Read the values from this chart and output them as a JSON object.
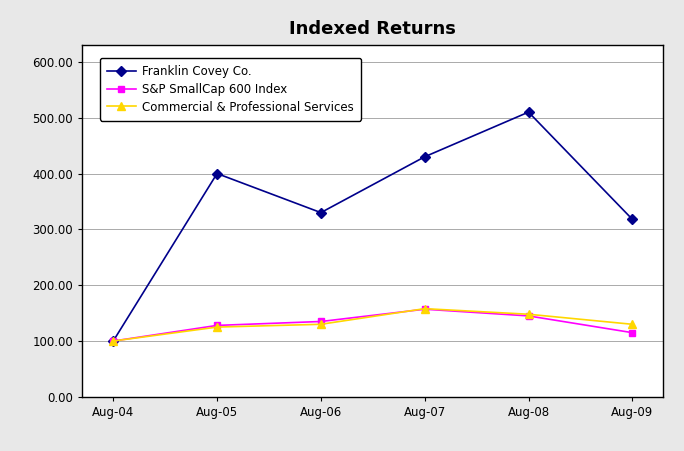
{
  "title": "Indexed Returns",
  "x_labels": [
    "Aug-04",
    "Aug-05",
    "Aug-06",
    "Aug-07",
    "Aug-08",
    "Aug-09"
  ],
  "series": [
    {
      "name": "Franklin Covey Co.",
      "values": [
        100.0,
        400.0,
        330.0,
        430.0,
        510.0,
        318.0
      ],
      "color": "#00008B",
      "marker": "D",
      "marker_size": 5,
      "linewidth": 1.2
    },
    {
      "name": "S&P SmallCap 600 Index",
      "values": [
        100.0,
        128.0,
        135.0,
        157.0,
        145.0,
        115.0
      ],
      "color": "#FF00FF",
      "marker": "s",
      "marker_size": 5,
      "linewidth": 1.2
    },
    {
      "name": "Commercial & Professional Services",
      "values": [
        100.0,
        125.0,
        130.0,
        158.0,
        148.0,
        130.0
      ],
      "color": "#FFD700",
      "marker": "^",
      "marker_size": 6,
      "linewidth": 1.2
    }
  ],
  "ylim": [
    0,
    630
  ],
  "yticks": [
    0.0,
    100.0,
    200.0,
    300.0,
    400.0,
    500.0,
    600.0
  ],
  "background_color": "#E8E8E8",
  "plot_bg_color": "#FFFFFF",
  "grid_color": "#AAAAAA",
  "title_fontsize": 13,
  "legend_fontsize": 8.5,
  "tick_fontsize": 8.5,
  "border_color": "#000000"
}
